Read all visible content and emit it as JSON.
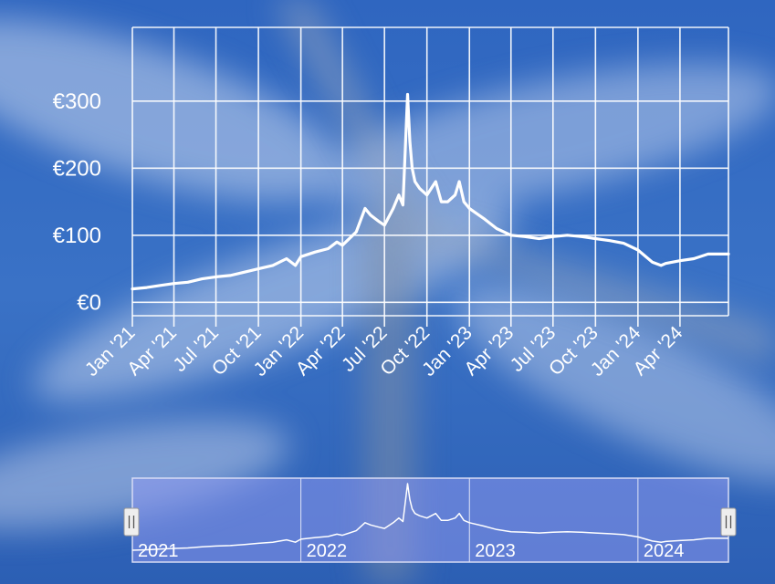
{
  "chart_data": {
    "type": "line",
    "title": "",
    "xlabel": "",
    "ylabel": "",
    "y_tick_labels": [
      "€0",
      "€100",
      "€200",
      "€300"
    ],
    "y_tick_values": [
      0,
      100,
      200,
      300
    ],
    "ylim": [
      -20,
      410
    ],
    "xlim": [
      "2021-01-01",
      "2024-07-15"
    ],
    "x_tick_labels": [
      "Jan '21",
      "Apr '21",
      "Jul '21",
      "Oct '21",
      "Jan '22",
      "Apr '22",
      "Jul '22",
      "Oct '22",
      "Jan '23",
      "Apr '23",
      "Jul '23",
      "Oct '23",
      "Jan '24",
      "Apr '24"
    ],
    "x_tick_dates": [
      "2021-01-01",
      "2021-04-01",
      "2021-07-01",
      "2021-10-01",
      "2022-01-01",
      "2022-04-01",
      "2022-07-01",
      "2022-10-01",
      "2023-01-01",
      "2023-04-01",
      "2023-07-01",
      "2023-10-01",
      "2024-01-01",
      "2024-04-01"
    ],
    "grid": true,
    "line_color": "#ffffff",
    "series": [
      {
        "x": [
          "2021-01-01",
          "2021-02-01",
          "2021-03-01",
          "2021-04-01",
          "2021-05-01",
          "2021-06-01",
          "2021-07-01",
          "2021-08-01",
          "2021-09-01",
          "2021-10-01",
          "2021-11-01",
          "2021-12-01",
          "2021-12-20",
          "2022-01-01",
          "2022-02-01",
          "2022-03-01",
          "2022-03-20",
          "2022-04-01",
          "2022-05-01",
          "2022-05-20",
          "2022-06-01",
          "2022-06-20",
          "2022-07-01",
          "2022-07-20",
          "2022-08-01",
          "2022-08-10",
          "2022-08-20",
          "2022-08-25",
          "2022-08-30",
          "2022-09-05",
          "2022-09-15",
          "2022-10-01",
          "2022-10-20",
          "2022-11-01",
          "2022-11-15",
          "2022-12-01",
          "2022-12-10",
          "2022-12-20",
          "2023-01-01",
          "2023-02-01",
          "2023-03-01",
          "2023-04-01",
          "2023-05-01",
          "2023-06-01",
          "2023-07-01",
          "2023-08-01",
          "2023-09-01",
          "2023-10-01",
          "2023-11-01",
          "2023-12-01",
          "2024-01-01",
          "2024-02-01",
          "2024-02-20",
          "2024-03-01",
          "2024-04-01",
          "2024-05-01",
          "2024-06-01",
          "2024-07-15"
        ],
        "y": [
          20,
          22,
          25,
          28,
          30,
          35,
          38,
          40,
          45,
          50,
          55,
          65,
          55,
          68,
          75,
          80,
          90,
          85,
          105,
          140,
          130,
          120,
          115,
          140,
          160,
          145,
          310,
          240,
          200,
          180,
          170,
          160,
          180,
          150,
          150,
          160,
          180,
          150,
          140,
          125,
          110,
          100,
          98,
          95,
          98,
          100,
          98,
          95,
          92,
          88,
          78,
          60,
          55,
          58,
          62,
          65,
          72,
          72
        ]
      }
    ]
  },
  "navigator": {
    "year_labels": [
      "2021",
      "2022",
      "2023",
      "2024"
    ],
    "year_dates": [
      "2021-01-01",
      "2022-01-01",
      "2023-01-01",
      "2024-01-01"
    ],
    "handle_left_icon": "grip-handle-icon",
    "handle_right_icon": "grip-handle-icon"
  },
  "colors": {
    "background": "#2f63b8",
    "line": "#ffffff",
    "navigator_fill": "#8c98ee"
  }
}
